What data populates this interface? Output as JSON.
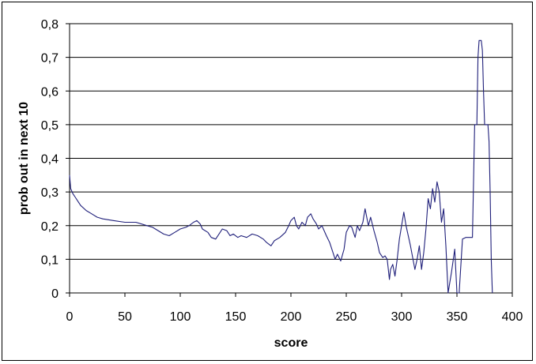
{
  "chart_data": {
    "type": "line",
    "title": "",
    "xlabel": "score",
    "ylabel": "prob out in next 10",
    "xlim": [
      0,
      400
    ],
    "ylim": [
      0,
      0.8
    ],
    "x_ticks": [
      0,
      50,
      100,
      150,
      200,
      250,
      300,
      350,
      400
    ],
    "x_tick_labels": [
      "0",
      "50",
      "100",
      "150",
      "200",
      "250",
      "300",
      "350",
      "400"
    ],
    "y_ticks": [
      0,
      0.1,
      0.2,
      0.3,
      0.4,
      0.5,
      0.6,
      0.7,
      0.8
    ],
    "y_tick_labels": [
      "0",
      "0,1",
      "0,2",
      "0,3",
      "0,4",
      "0,5",
      "0,6",
      "0,7",
      "0,8"
    ],
    "grid": "horizontal",
    "line_color": "#1f1f7a",
    "series": [
      {
        "x": [
          0,
          1,
          3,
          5,
          8,
          10,
          15,
          20,
          25,
          30,
          40,
          50,
          60,
          70,
          75,
          80,
          85,
          90,
          95,
          100,
          105,
          108,
          112,
          115,
          118,
          120,
          125,
          128,
          132,
          135,
          138,
          142,
          145,
          148,
          152,
          155,
          160,
          165,
          170,
          175,
          178,
          182,
          185,
          190,
          195,
          198,
          200,
          203,
          205,
          207,
          210,
          213,
          215,
          218,
          220,
          223,
          225,
          228,
          230,
          232,
          235,
          238,
          240,
          242,
          245,
          248,
          250,
          253,
          255,
          258,
          260,
          262,
          265,
          267,
          270,
          272,
          275,
          278,
          280,
          283,
          285,
          287,
          289,
          290,
          292,
          294,
          296,
          298,
          300,
          302,
          304,
          306,
          308,
          310,
          312,
          314,
          316,
          318,
          320,
          322,
          324,
          326,
          328,
          330,
          332,
          334,
          336,
          338,
          340,
          342,
          345,
          348,
          350,
          352,
          355,
          358,
          362,
          364,
          366,
          368,
          369,
          370,
          371,
          372,
          373,
          374,
          375,
          376,
          377,
          378,
          379,
          380,
          381,
          382
        ],
        "y": [
          0.35,
          0.31,
          0.295,
          0.285,
          0.27,
          0.26,
          0.245,
          0.235,
          0.225,
          0.22,
          0.215,
          0.21,
          0.21,
          0.2,
          0.195,
          0.185,
          0.175,
          0.17,
          0.18,
          0.19,
          0.195,
          0.2,
          0.21,
          0.215,
          0.205,
          0.19,
          0.18,
          0.165,
          0.16,
          0.175,
          0.19,
          0.185,
          0.17,
          0.175,
          0.165,
          0.17,
          0.165,
          0.175,
          0.17,
          0.16,
          0.15,
          0.14,
          0.155,
          0.165,
          0.18,
          0.2,
          0.215,
          0.225,
          0.2,
          0.19,
          0.21,
          0.2,
          0.225,
          0.235,
          0.22,
          0.205,
          0.19,
          0.2,
          0.185,
          0.17,
          0.15,
          0.12,
          0.1,
          0.115,
          0.095,
          0.13,
          0.18,
          0.2,
          0.195,
          0.165,
          0.2,
          0.185,
          0.21,
          0.25,
          0.2,
          0.225,
          0.185,
          0.15,
          0.12,
          0.105,
          0.11,
          0.1,
          0.04,
          0.07,
          0.085,
          0.05,
          0.1,
          0.16,
          0.2,
          0.24,
          0.2,
          0.17,
          0.14,
          0.105,
          0.07,
          0.1,
          0.14,
          0.07,
          0.12,
          0.19,
          0.28,
          0.25,
          0.31,
          0.27,
          0.33,
          0.3,
          0.21,
          0.25,
          0.14,
          0.0,
          0.06,
          0.13,
          0.0,
          0.0,
          0.16,
          0.165,
          0.165,
          0.165,
          0.5,
          0.5,
          0.7,
          0.75,
          0.75,
          0.75,
          0.72,
          0.6,
          0.5,
          0.5,
          0.5,
          0.5,
          0.45,
          0.3,
          0.1,
          0.0
        ]
      }
    ]
  }
}
